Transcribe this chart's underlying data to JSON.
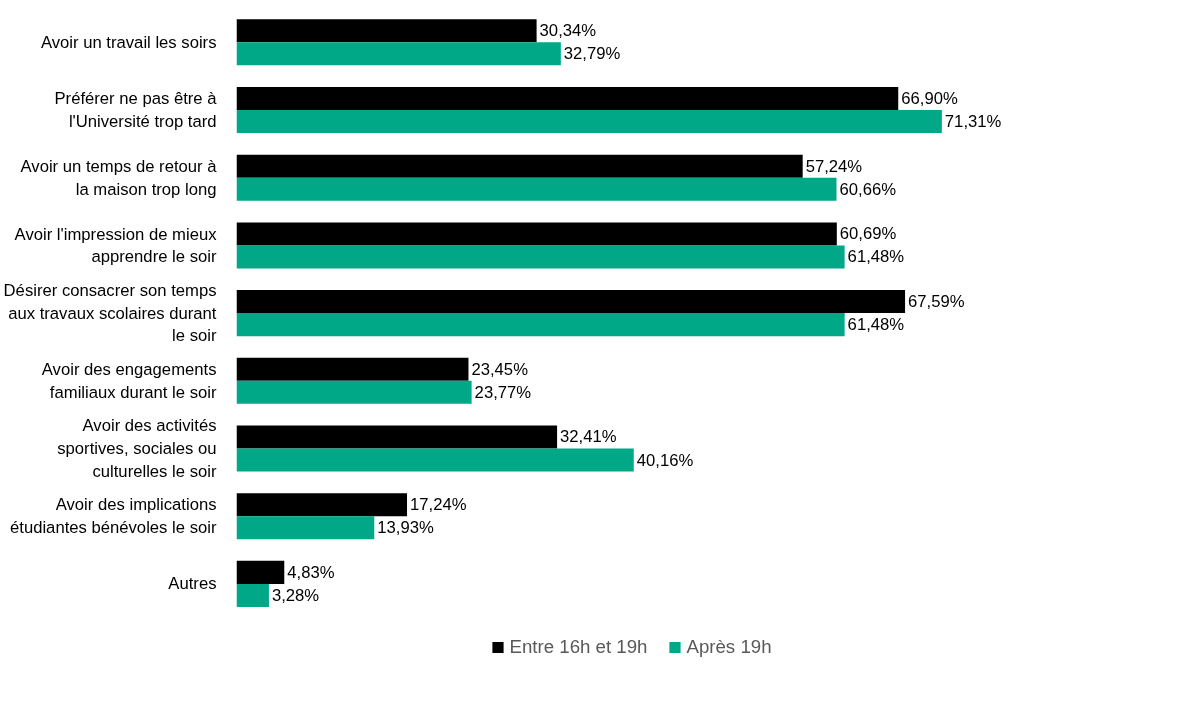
{
  "chart_data": {
    "type": "bar",
    "orientation": "horizontal",
    "categories": [
      "Avoir un travail les soirs",
      "Préférer ne pas être à l'Université trop tard",
      "Avoir un temps de retour à la maison trop long",
      "Avoir l'impression de mieux apprendre le soir",
      "Désirer consacrer son temps aux travaux scolaires durant le soir",
      "Avoir des engagements familiaux durant le soir",
      "Avoir des activités sportives, sociales ou culturelles le soir",
      "Avoir des implications étudiantes bénévoles le soir",
      "Autres"
    ],
    "series": [
      {
        "name": "Entre 16h et 19h",
        "color": "#000000",
        "values": [
          30.34,
          66.9,
          57.24,
          60.69,
          67.59,
          23.45,
          32.41,
          17.24,
          4.83
        ],
        "value_labels": [
          "30,34%",
          "66,90%",
          "57,24%",
          "60,69%",
          "67,59%",
          "23,45%",
          "32,41%",
          "17,24%",
          "4,83%"
        ]
      },
      {
        "name": "Après 19h",
        "color": "#00a887",
        "values": [
          32.79,
          71.31,
          60.66,
          61.48,
          61.48,
          23.77,
          40.16,
          13.93,
          3.28
        ],
        "value_labels": [
          "32,79%",
          "71,31%",
          "60,66%",
          "61,48%",
          "61,48%",
          "23,77%",
          "40,16%",
          "13,93%",
          "3,28%"
        ]
      }
    ],
    "tick_labels": "y",
    "grid": false,
    "legend": "bottom"
  }
}
